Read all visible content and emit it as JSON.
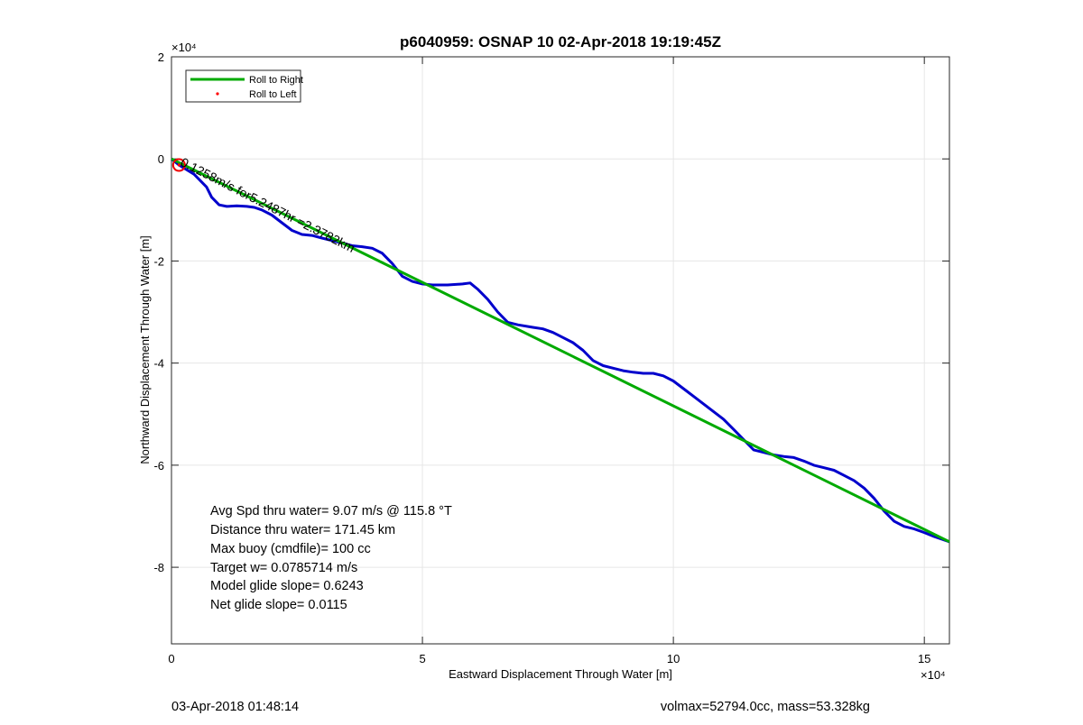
{
  "chart_data": {
    "type": "line",
    "title": "p6040959: OSNAP 10 02-Apr-2018 19:19:45Z",
    "xlabel": "Eastward Displacement Through Water [m]",
    "ylabel": "Northward Displacement Through Water [m]",
    "xlim": [
      0,
      155000
    ],
    "ylim": [
      -95000,
      20000
    ],
    "x_exponent_label": "×10⁴",
    "y_exponent_label": "×10⁴",
    "xticks": [
      0,
      50000,
      100000,
      150000
    ],
    "xtick_labels": [
      "0",
      "5",
      "10",
      "15"
    ],
    "yticks": [
      20000,
      0,
      -20000,
      -40000,
      -60000,
      -80000
    ],
    "ytick_labels": [
      "2",
      "0",
      "-2",
      "-4",
      "-6",
      "-8"
    ],
    "grid": true,
    "legend_position": "top-left",
    "series": [
      {
        "name": "Roll to Right",
        "color": "#00aa00",
        "style": "line",
        "x": [
          0,
          155000
        ],
        "y": [
          0,
          -75000
        ]
      },
      {
        "name": "Roll to Left",
        "color": "#ff0000",
        "style": "dots",
        "x": [
          1500
        ],
        "y": [
          -1200
        ]
      },
      {
        "name": "",
        "color": "#0000cc",
        "style": "line",
        "x": [
          0,
          1500,
          4500,
          7000,
          8000,
          9500,
          11000,
          13000,
          15000,
          16500,
          18000,
          20000,
          22000,
          24000,
          26000,
          28000,
          30000,
          32000,
          34000,
          36000,
          38000,
          40000,
          42000,
          44000,
          46000,
          48000,
          50000,
          52000,
          55000,
          58000,
          59500,
          61000,
          63000,
          65000,
          67000,
          69000,
          72000,
          74000,
          76000,
          78000,
          80000,
          82000,
          84000,
          86000,
          88000,
          90000,
          92000,
          94000,
          96000,
          98000,
          100000,
          102000,
          104000,
          106000,
          108000,
          110000,
          112000,
          114000,
          116000,
          118000,
          120000,
          122000,
          124000,
          126000,
          128000,
          130000,
          132000,
          134000,
          136000,
          138000,
          140000,
          142000,
          144000,
          146000,
          148000,
          150000,
          152000,
          155000
        ],
        "y": [
          0,
          -1200,
          -3000,
          -5500,
          -7500,
          -9000,
          -9300,
          -9200,
          -9300,
          -9500,
          -10000,
          -11000,
          -12500,
          -14000,
          -14800,
          -15000,
          -15500,
          -16000,
          -16500,
          -17000,
          -17200,
          -17500,
          -18500,
          -20500,
          -23000,
          -24000,
          -24500,
          -24700,
          -24700,
          -24500,
          -24300,
          -25500,
          -27500,
          -30000,
          -32000,
          -32500,
          -33000,
          -33300,
          -34000,
          -35000,
          -36000,
          -37500,
          -39500,
          -40500,
          -41000,
          -41500,
          -41800,
          -42000,
          -42000,
          -42500,
          -43500,
          -45000,
          -46500,
          -48000,
          -49500,
          -51000,
          -53000,
          -55000,
          -57000,
          -57500,
          -58000,
          -58300,
          -58500,
          -59200,
          -60000,
          -60500,
          -61000,
          -62000,
          -63000,
          -64500,
          -66500,
          -69000,
          -71000,
          -72000,
          -72500,
          -73200,
          -74000,
          -75000
        ]
      }
    ],
    "annotations": {
      "slanted_text": "0.1258m/s for5.2487hr =2.3782km"
    }
  },
  "stats": [
    "Avg Spd thru water=  9.07 m/s @ 115.8 °T",
    "Distance thru water= 171.45 km",
    "Max buoy (cmdfile)= 100 cc",
    "Target w= 0.0785714 m/s",
    "Model glide slope= 0.6243",
    "Net glide slope= 0.0115"
  ],
  "footer": {
    "left": "03-Apr-2018 01:48:14",
    "right": "volmax=52794.0cc, mass=53.328kg"
  }
}
